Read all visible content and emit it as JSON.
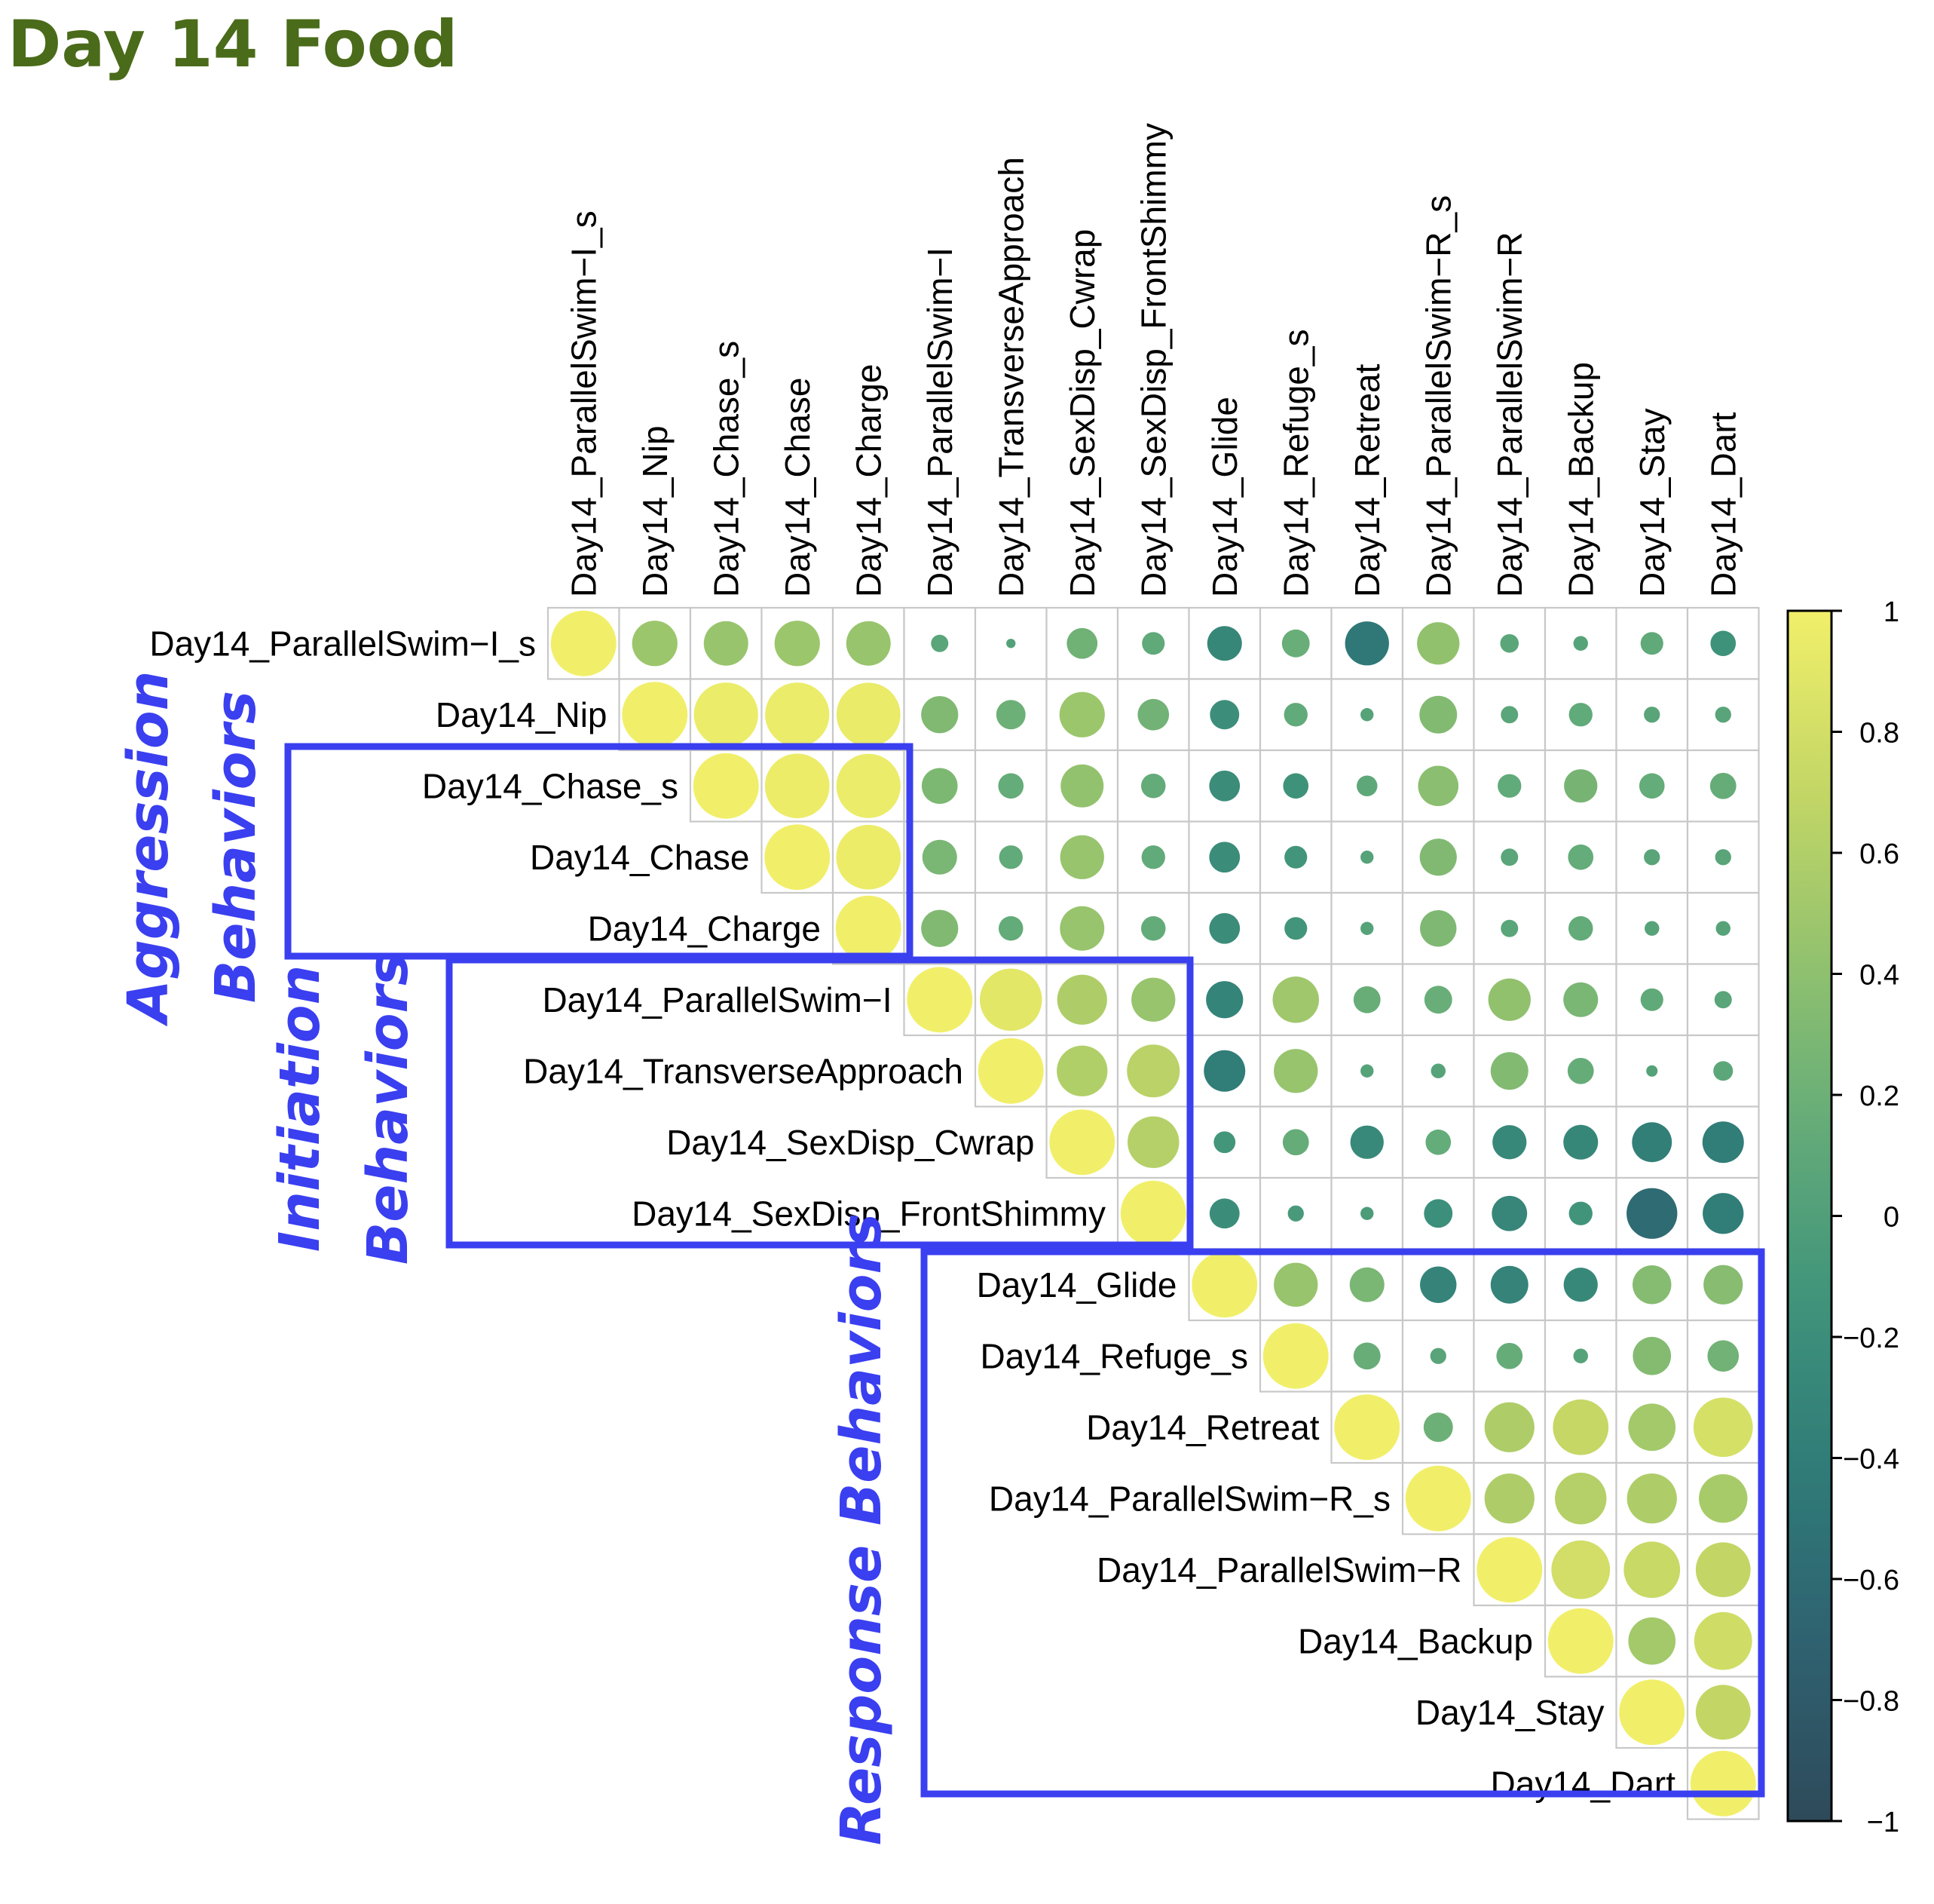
{
  "title": "Day 14 Food",
  "colors": {
    "title": "#4a6b1a",
    "group_box": "#3a3ff0",
    "grid": "#c8c8c8",
    "colormap": [
      "#2e4a5a",
      "#2f6170",
      "#2f7a78",
      "#3f937a",
      "#63ab79",
      "#93c26e",
      "#c5d765",
      "#f1ef6a"
    ]
  },
  "groups": [
    {
      "label_lines": [
        "Aggression",
        "Behaviors"
      ]
    },
    {
      "label_lines": [
        "Initiation",
        "Behaviors"
      ]
    },
    {
      "label_lines": [
        "Response Behaviors"
      ]
    }
  ],
  "chart_data": {
    "type": "heatmap",
    "subtype": "correlation-circles-upper-triangle",
    "title": "Day 14 Food",
    "variables": [
      "Day14_ParallelSwim−I_s",
      "Day14_Nip",
      "Day14_Chase_s",
      "Day14_Chase",
      "Day14_Charge",
      "Day14_ParallelSwim−I",
      "Day14_TransverseApproach",
      "Day14_SexDisp_Cwrap",
      "Day14_SexDisp_FrontShimmy",
      "Day14_Glide",
      "Day14_Refuge_s",
      "Day14_Retreat",
      "Day14_ParallelSwim−R_s",
      "Day14_ParallelSwim−R",
      "Day14_Backup",
      "Day14_Stay",
      "Day14_Dart"
    ],
    "matrix": [
      [
        1,
        0.48,
        0.46,
        0.48,
        0.46,
        0.07,
        0.02,
        0.22,
        0.12,
        -0.28,
        0.18,
        -0.45,
        0.42,
        0.08,
        0.05,
        0.12,
        -0.15
      ],
      [
        null,
        1,
        0.96,
        0.96,
        0.95,
        0.32,
        0.2,
        0.48,
        0.23,
        -0.2,
        0.13,
        0.04,
        0.33,
        0.07,
        0.13,
        0.06,
        0.06
      ],
      [
        null,
        null,
        1,
        0.97,
        0.96,
        0.3,
        0.15,
        0.43,
        0.14,
        -0.22,
        -0.15,
        0.1,
        0.38,
        0.13,
        0.26,
        0.15,
        0.16
      ],
      [
        null,
        null,
        null,
        1,
        0.97,
        0.28,
        0.13,
        0.45,
        0.13,
        -0.22,
        -0.12,
        0.04,
        0.32,
        0.07,
        0.15,
        0.06,
        0.06
      ],
      [
        null,
        null,
        null,
        null,
        1,
        0.32,
        0.14,
        0.46,
        0.14,
        -0.22,
        -0.12,
        0.04,
        0.31,
        0.07,
        0.14,
        0.05,
        0.05
      ],
      [
        null,
        null,
        null,
        null,
        null,
        1,
        0.9,
        0.58,
        0.45,
        -0.32,
        0.5,
        0.17,
        0.18,
        0.42,
        0.28,
        0.12,
        0.07
      ],
      [
        null,
        null,
        null,
        null,
        null,
        null,
        1,
        0.6,
        0.65,
        -0.4,
        0.45,
        0.04,
        0.05,
        0.33,
        0.16,
        0.03,
        0.09
      ],
      [
        null,
        null,
        null,
        null,
        null,
        null,
        null,
        1,
        0.62,
        -0.11,
        0.16,
        -0.26,
        0.15,
        -0.27,
        -0.28,
        -0.37,
        -0.4
      ],
      [
        null,
        null,
        null,
        null,
        null,
        null,
        null,
        null,
        1,
        -0.21,
        -0.06,
        -0.04,
        -0.19,
        -0.29,
        -0.13,
        -0.6,
        -0.39
      ],
      [
        null,
        null,
        null,
        null,
        null,
        null,
        null,
        null,
        null,
        1,
        0.45,
        0.28,
        -0.31,
        -0.33,
        -0.27,
        0.35,
        0.36
      ],
      [
        null,
        null,
        null,
        null,
        null,
        null,
        null,
        null,
        null,
        null,
        1,
        0.17,
        0.06,
        0.16,
        0.05,
        0.34,
        0.23
      ],
      [
        null,
        null,
        null,
        null,
        null,
        null,
        null,
        null,
        null,
        null,
        null,
        1,
        0.2,
        0.58,
        0.72,
        0.52,
        0.82
      ],
      [
        null,
        null,
        null,
        null,
        null,
        null,
        null,
        null,
        null,
        null,
        null,
        null,
        1,
        0.58,
        0.62,
        0.58,
        0.55
      ],
      [
        null,
        null,
        null,
        null,
        null,
        null,
        null,
        null,
        null,
        null,
        null,
        null,
        null,
        1,
        0.8,
        0.74,
        0.7
      ],
      [
        null,
        null,
        null,
        null,
        null,
        null,
        null,
        null,
        null,
        null,
        null,
        null,
        null,
        null,
        1,
        0.52,
        0.78
      ],
      [
        null,
        null,
        null,
        null,
        null,
        null,
        null,
        null,
        null,
        null,
        null,
        null,
        null,
        null,
        null,
        1,
        0.7
      ],
      [
        null,
        null,
        null,
        null,
        null,
        null,
        null,
        null,
        null,
        null,
        null,
        null,
        null,
        null,
        null,
        null,
        1
      ]
    ],
    "colorbar": {
      "range": [
        -1,
        1
      ],
      "ticks": [
        "1",
        "0.8",
        "0.6",
        "0.4",
        "0.2",
        "0",
        "−0.2",
        "−0.4",
        "−0.6",
        "−0.8",
        "−1"
      ]
    }
  }
}
